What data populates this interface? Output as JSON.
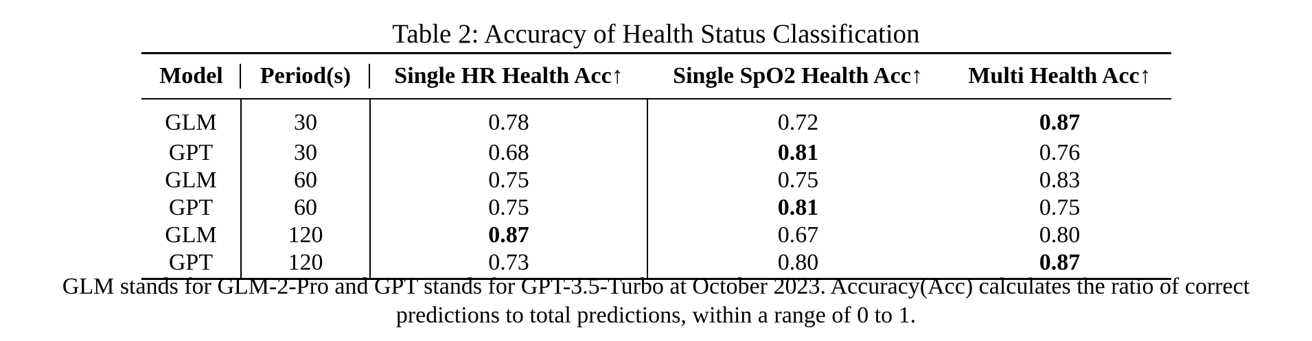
{
  "caption": "Table 2: Accuracy of Health Status Classification",
  "table": {
    "headers": {
      "model": "Model",
      "period": "Period(s)",
      "single_hr": "Single HR Health Acc↑",
      "single_spo2": "Single SpO2 Health Acc↑",
      "multi": "Multi Health Acc↑"
    },
    "rows": [
      {
        "model": "GLM",
        "period": "30",
        "single_hr": "0.78",
        "single_spo2": "0.72",
        "multi": "0.87",
        "bold": "multi"
      },
      {
        "model": "GPT",
        "period": "30",
        "single_hr": "0.68",
        "single_spo2": "0.81",
        "multi": "0.76",
        "bold": "single_spo2"
      },
      {
        "model": "GLM",
        "period": "60",
        "single_hr": "0.75",
        "single_spo2": "0.75",
        "multi": "0.83",
        "bold": ""
      },
      {
        "model": "GPT",
        "period": "60",
        "single_hr": "0.75",
        "single_spo2": "0.81",
        "multi": "0.75",
        "bold": "single_spo2"
      },
      {
        "model": "GLM",
        "period": "120",
        "single_hr": "0.87",
        "single_spo2": "0.67",
        "multi": "0.80",
        "bold": "single_hr"
      },
      {
        "model": "GPT",
        "period": "120",
        "single_hr": "0.73",
        "single_spo2": "0.80",
        "multi": "0.87",
        "bold": "multi"
      }
    ]
  },
  "note_line1": "GLM stands for GLM-2-Pro and GPT stands for GPT-3.5-Turbo at October 2023. Accuracy(Acc) calculates the ratio of correct",
  "note_line2": "predictions to total predictions, within a range of 0 to 1."
}
